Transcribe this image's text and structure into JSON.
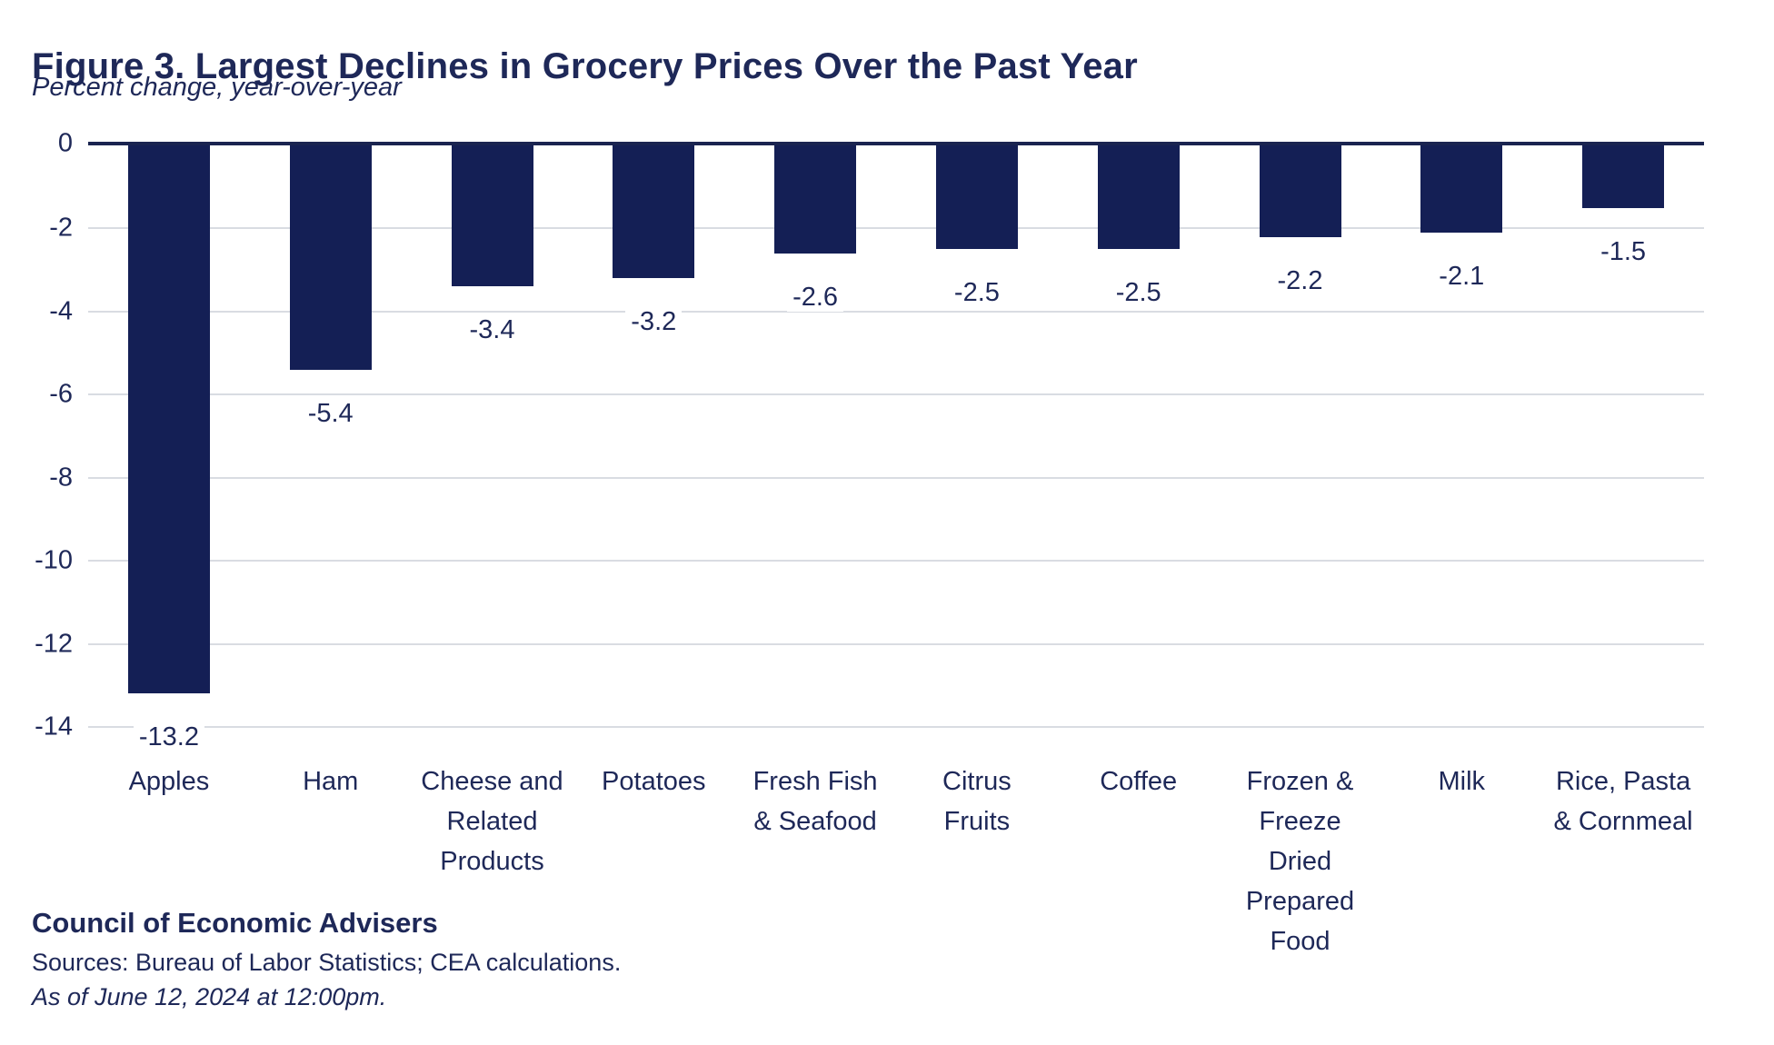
{
  "header": {
    "title": "Figure 3. Largest Declines in Grocery Prices Over the Past Year",
    "subtitle": "Percent change, year-over-year"
  },
  "colors": {
    "text_navy": "#1e2858",
    "bar_navy": "#141f55",
    "gridline_gray": "#d9dce2",
    "axis_navy": "#1a2450"
  },
  "chart_data": {
    "type": "bar",
    "title": "Figure 3. Largest Declines in Grocery Prices Over the Past Year",
    "subtitle": "Percent change, year-over-year",
    "categories": [
      "Apples",
      "Ham",
      "Cheese and\nRelated\nProducts",
      "Potatoes",
      "Fresh Fish\n& Seafood",
      "Citrus\nFruits",
      "Coffee",
      "Frozen &\nFreeze\nDried\nPrepared\nFood",
      "Milk",
      "Rice, Pasta\n& Cornmeal"
    ],
    "values": [
      -13.2,
      -5.4,
      -3.4,
      -3.2,
      -2.6,
      -2.5,
      -2.5,
      -2.2,
      -2.1,
      -1.5
    ],
    "data_labels": [
      "-13.2",
      "-5.4",
      "-3.4",
      "-3.2",
      "-2.6",
      "-2.5",
      "-2.5",
      "-2.2",
      "-2.1",
      "-1.5"
    ],
    "xlabel": "",
    "ylabel": "Percent change, year-over-year",
    "ylim": [
      -14,
      0
    ],
    "y_ticks": [
      "0",
      "-2",
      "-4",
      "-6",
      "-8",
      "-10",
      "-12",
      "-14"
    ],
    "grid": "horizontal-on",
    "legend": "none",
    "bar_color": "#141f55",
    "gridline_color": "#d9dce2",
    "axis_color": "#1a2450"
  },
  "footer": {
    "organization": "Council of Economic Advisers",
    "sources": "Sources: Bureau of Labor Statistics; CEA calculations.",
    "as_of": "As of June 12, 2024 at 12:00pm."
  }
}
